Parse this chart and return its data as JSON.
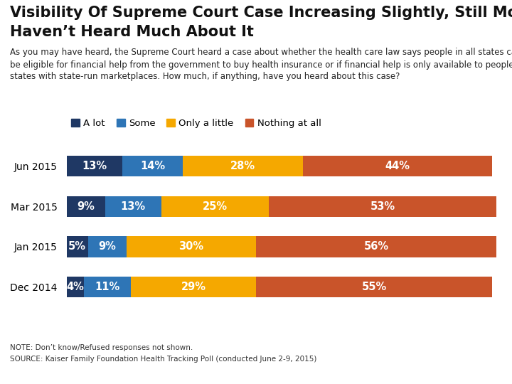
{
  "title_line1": "Visibility Of Supreme Court Case Increasing Slightly, Still Most",
  "title_line2": "Haven’t Heard Much About It",
  "subtitle": "As you may have heard, the Supreme Court heard a case about whether the health care law says people in all states can\nbe eligible for financial help from the government to buy health insurance or if financial help is only available to people in\nstates with state-run marketplaces. How much, if anything, have you heard about this case?",
  "categories": [
    "Jun 2015",
    "Mar 2015",
    "Jan 2015",
    "Dec 2014"
  ],
  "series": {
    "A lot": [
      13,
      9,
      5,
      4
    ],
    "Some": [
      14,
      13,
      9,
      11
    ],
    "Only a little": [
      28,
      25,
      30,
      29
    ],
    "Nothing at all": [
      44,
      53,
      56,
      55
    ]
  },
  "colors": {
    "A lot": "#1f3864",
    "Some": "#2e75b6",
    "Only a little": "#f5a800",
    "Nothing at all": "#c9542a"
  },
  "legend_order": [
    "A lot",
    "Some",
    "Only a little",
    "Nothing at all"
  ],
  "note_line1": "NOTE: Don’t know/Refused responses not shown.",
  "note_line2": "SOURCE: Kaiser Family Foundation Health Tracking Poll (conducted June 2-9, 2015)",
  "background_color": "#ffffff",
  "bar_height": 0.52,
  "text_color_white": "#ffffff",
  "title_fontsize": 15,
  "subtitle_fontsize": 8.5,
  "legend_fontsize": 9.5,
  "bar_label_fontsize": 10.5,
  "ytick_fontsize": 10,
  "note_fontsize": 7.5
}
